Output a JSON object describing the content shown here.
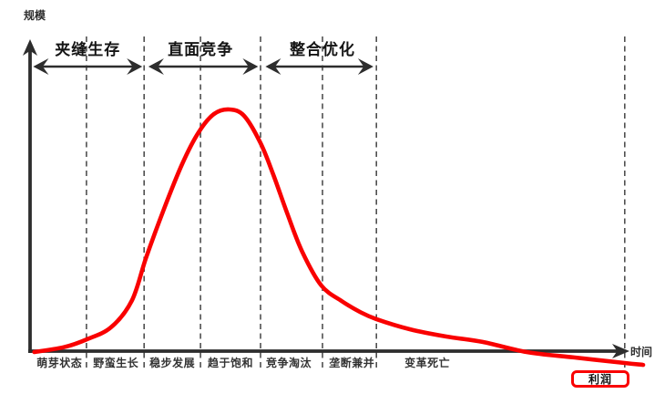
{
  "chart_data": {
    "type": "line",
    "xlabel": "时间",
    "ylabel": "规模",
    "curve_color": "#f90000",
    "axis_color": "#2d2d2d",
    "dash_color": "#4f4f4f",
    "badge": "利润",
    "grid": "dashed-vertical-boundaries",
    "x_range": [
      0,
      1
    ],
    "y_range": [
      0,
      1
    ],
    "phases": [
      {
        "label": "夹缝生存",
        "from": 0.005,
        "to": 0.183,
        "label_t": 0.094
      },
      {
        "label": "直面竞争",
        "from": 0.193,
        "to": 0.372,
        "label_t": 0.278
      },
      {
        "label": "整合优化",
        "from": 0.384,
        "to": 0.56,
        "label_t": 0.477
      }
    ],
    "stage_boundaries_t": [
      0.092,
      0.186,
      0.278,
      0.376,
      0.477,
      0.565,
      0.97
    ],
    "stages": [
      {
        "label": "萌芽状态",
        "t": 0.048
      },
      {
        "label": "野蛮生长",
        "t": 0.14
      },
      {
        "label": "稳步发展",
        "t": 0.232
      },
      {
        "label": "趋于饱和",
        "t": 0.327
      },
      {
        "label": "竞争淘汰",
        "t": 0.422
      },
      {
        "label": "垄断兼并",
        "t": 0.525
      },
      {
        "label": "变革死亡",
        "t": 0.648
      }
    ],
    "curve_points": [
      [
        0.007,
        -0.002
      ],
      [
        0.055,
        0.018
      ],
      [
        0.092,
        0.05
      ],
      [
        0.132,
        0.1
      ],
      [
        0.166,
        0.21
      ],
      [
        0.189,
        0.386
      ],
      [
        0.218,
        0.586
      ],
      [
        0.248,
        0.774
      ],
      [
        0.275,
        0.906
      ],
      [
        0.3,
        0.981
      ],
      [
        0.325,
        1.0
      ],
      [
        0.349,
        0.974
      ],
      [
        0.376,
        0.861
      ],
      [
        0.397,
        0.729
      ],
      [
        0.42,
        0.567
      ],
      [
        0.444,
        0.412
      ],
      [
        0.475,
        0.273
      ],
      [
        0.508,
        0.209
      ],
      [
        0.538,
        0.164
      ],
      [
        0.565,
        0.134
      ],
      [
        0.62,
        0.092
      ],
      [
        0.679,
        0.062
      ],
      [
        0.738,
        0.04
      ],
      [
        0.81,
        -0.002
      ],
      [
        0.887,
        -0.024
      ],
      [
        0.97,
        -0.047
      ],
      [
        1.0,
        -0.055
      ]
    ]
  }
}
